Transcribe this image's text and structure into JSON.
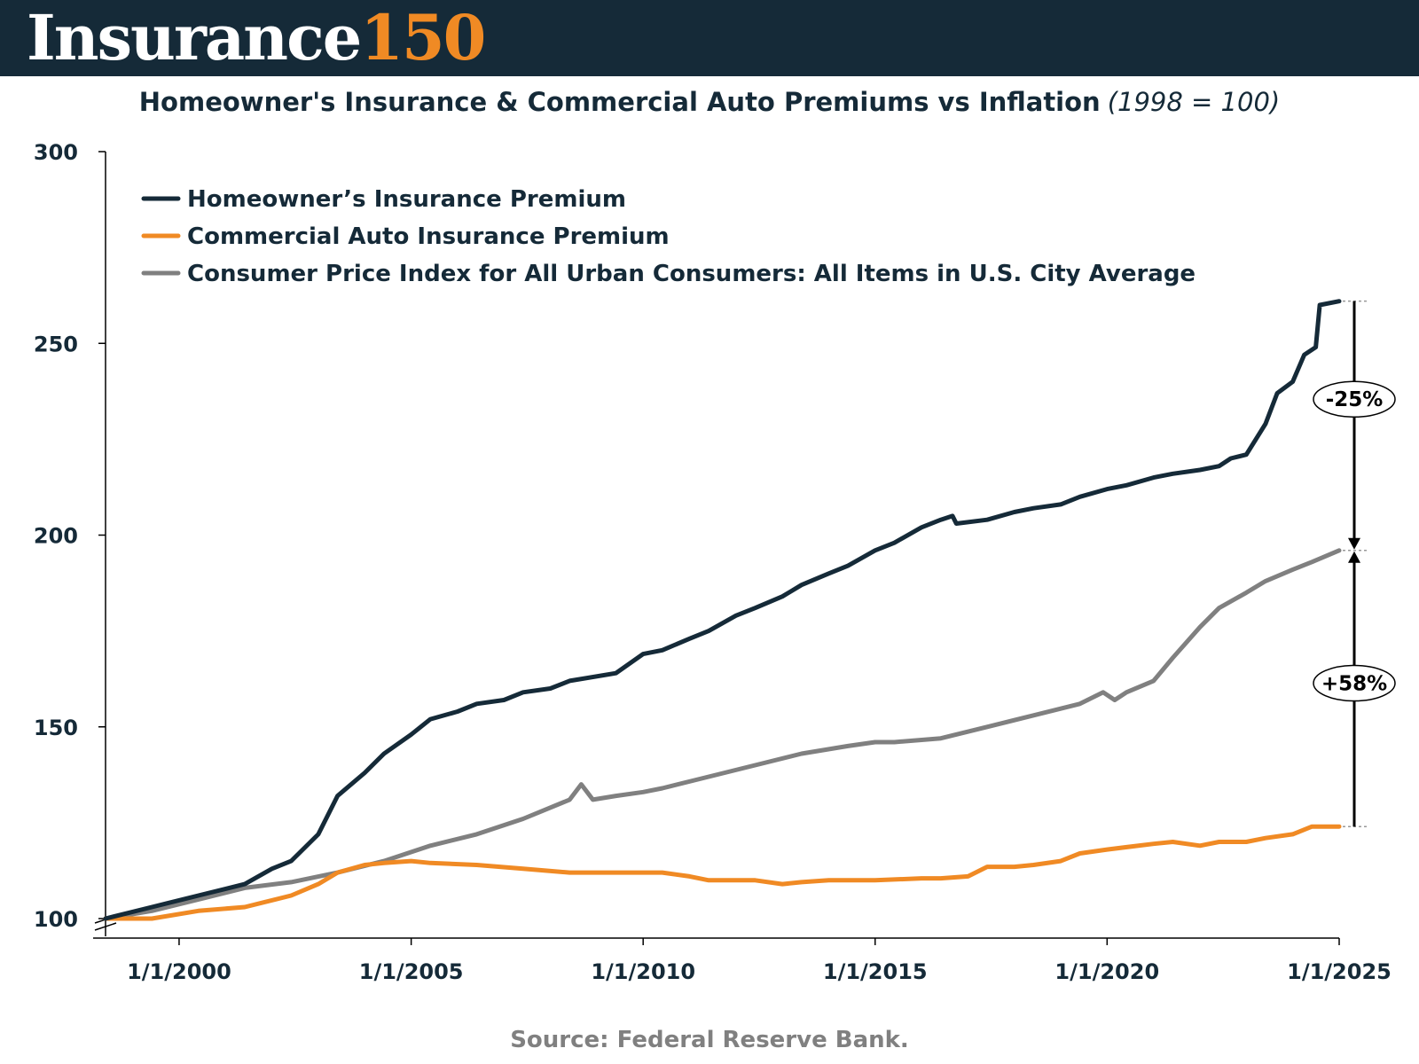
{
  "brand": {
    "logo_word": "Insurance",
    "logo_number": "150"
  },
  "source": "Source: Federal Reserve Bank.",
  "chart_data": {
    "type": "line",
    "title": "Homeowner's Insurance & Commercial Auto Premiums vs Inflation",
    "subtitle": "(1998 = 100)",
    "xlabel": "",
    "ylabel": "",
    "x_ticks": [
      "1/1/2000",
      "1/1/2005",
      "1/1/2010",
      "1/1/2015",
      "1/1/2020",
      "1/1/2025"
    ],
    "y_ticks": [
      100,
      150,
      200,
      250,
      300
    ],
    "xlim": [
      "1998-06-01",
      "2025-01-01"
    ],
    "ylim": [
      100,
      300
    ],
    "grid": false,
    "legend_position": "top-left",
    "series": [
      {
        "name": "Homeowner’s Insurance Premium",
        "color": "#152a38",
        "points": [
          [
            "1998-06-01",
            100
          ],
          [
            "1999-06-01",
            103
          ],
          [
            "2000-06-01",
            106
          ],
          [
            "2001-06-01",
            109
          ],
          [
            "2002-01-01",
            113
          ],
          [
            "2002-06-01",
            115
          ],
          [
            "2003-01-01",
            122
          ],
          [
            "2003-06-01",
            132
          ],
          [
            "2004-01-01",
            138
          ],
          [
            "2004-06-01",
            143
          ],
          [
            "2005-01-01",
            148
          ],
          [
            "2005-06-01",
            152
          ],
          [
            "2006-01-01",
            154
          ],
          [
            "2006-06-01",
            156
          ],
          [
            "2007-01-01",
            157
          ],
          [
            "2007-06-01",
            159
          ],
          [
            "2008-01-01",
            160
          ],
          [
            "2008-06-01",
            162
          ],
          [
            "2009-06-01",
            164
          ],
          [
            "2010-01-01",
            169
          ],
          [
            "2010-06-01",
            170
          ],
          [
            "2011-01-01",
            173
          ],
          [
            "2011-06-01",
            175
          ],
          [
            "2012-01-01",
            179
          ],
          [
            "2012-06-01",
            181
          ],
          [
            "2013-01-01",
            184
          ],
          [
            "2013-06-01",
            187
          ],
          [
            "2014-01-01",
            190
          ],
          [
            "2014-06-01",
            192
          ],
          [
            "2015-01-01",
            196
          ],
          [
            "2015-06-01",
            198
          ],
          [
            "2016-01-01",
            202
          ],
          [
            "2016-06-01",
            204
          ],
          [
            "2016-09-01",
            205
          ],
          [
            "2016-10-01",
            203
          ],
          [
            "2017-06-01",
            204
          ],
          [
            "2018-01-01",
            206
          ],
          [
            "2018-06-01",
            207
          ],
          [
            "2019-01-01",
            208
          ],
          [
            "2019-06-01",
            210
          ],
          [
            "2020-01-01",
            212
          ],
          [
            "2020-06-01",
            213
          ],
          [
            "2021-01-01",
            215
          ],
          [
            "2021-06-01",
            216
          ],
          [
            "2022-01-01",
            217
          ],
          [
            "2022-06-01",
            218
          ],
          [
            "2022-09-01",
            220
          ],
          [
            "2023-01-01",
            221
          ],
          [
            "2023-06-01",
            229
          ],
          [
            "2023-09-01",
            237
          ],
          [
            "2024-01-01",
            240
          ],
          [
            "2024-04-01",
            247
          ],
          [
            "2024-07-01",
            249
          ],
          [
            "2024-08-01",
            260
          ],
          [
            "2025-01-01",
            261
          ]
        ]
      },
      {
        "name": "Commercial Auto Insurance Premium",
        "color": "#f08a24",
        "points": [
          [
            "1998-06-01",
            100
          ],
          [
            "1999-06-01",
            100
          ],
          [
            "2000-06-01",
            102
          ],
          [
            "2001-06-01",
            103
          ],
          [
            "2002-06-01",
            106
          ],
          [
            "2003-01-01",
            109
          ],
          [
            "2003-06-01",
            112
          ],
          [
            "2004-01-01",
            114
          ],
          [
            "2004-06-01",
            114.5
          ],
          [
            "2005-01-01",
            115
          ],
          [
            "2005-06-01",
            114.5
          ],
          [
            "2006-06-01",
            114
          ],
          [
            "2007-06-01",
            113
          ],
          [
            "2008-06-01",
            112
          ],
          [
            "2009-06-01",
            112
          ],
          [
            "2010-06-01",
            112
          ],
          [
            "2011-01-01",
            111
          ],
          [
            "2011-06-01",
            110
          ],
          [
            "2012-06-01",
            110
          ],
          [
            "2013-01-01",
            109
          ],
          [
            "2013-06-01",
            109.5
          ],
          [
            "2014-01-01",
            110
          ],
          [
            "2015-01-01",
            110
          ],
          [
            "2016-01-01",
            110.5
          ],
          [
            "2016-06-01",
            110.5
          ],
          [
            "2017-01-01",
            111
          ],
          [
            "2017-06-01",
            113.5
          ],
          [
            "2018-01-01",
            113.5
          ],
          [
            "2018-06-01",
            114
          ],
          [
            "2019-01-01",
            115
          ],
          [
            "2019-06-01",
            117
          ],
          [
            "2020-01-01",
            118
          ],
          [
            "2021-01-01",
            119.5
          ],
          [
            "2021-06-01",
            120
          ],
          [
            "2022-01-01",
            119
          ],
          [
            "2022-06-01",
            120
          ],
          [
            "2023-01-01",
            120
          ],
          [
            "2023-06-01",
            121
          ],
          [
            "2024-01-01",
            122
          ],
          [
            "2024-06-01",
            124
          ],
          [
            "2025-01-01",
            124
          ]
        ]
      },
      {
        "name": "Consumer Price Index for All Urban Consumers: All Items in U.S. City Average",
        "color": "#808080",
        "points": [
          [
            "1998-06-01",
            100
          ],
          [
            "1999-06-01",
            102
          ],
          [
            "2000-06-01",
            105
          ],
          [
            "2001-06-01",
            108
          ],
          [
            "2002-06-01",
            109.5
          ],
          [
            "2003-06-01",
            112
          ],
          [
            "2004-06-01",
            115
          ],
          [
            "2005-06-01",
            119
          ],
          [
            "2006-06-01",
            122
          ],
          [
            "2007-06-01",
            126
          ],
          [
            "2008-06-01",
            131
          ],
          [
            "2008-09-01",
            135
          ],
          [
            "2008-12-01",
            131
          ],
          [
            "2009-06-01",
            132
          ],
          [
            "2010-01-01",
            133
          ],
          [
            "2010-06-01",
            134
          ],
          [
            "2011-06-01",
            137
          ],
          [
            "2012-06-01",
            140
          ],
          [
            "2013-06-01",
            143
          ],
          [
            "2014-06-01",
            145
          ],
          [
            "2015-01-01",
            146
          ],
          [
            "2015-06-01",
            146
          ],
          [
            "2016-06-01",
            147
          ],
          [
            "2017-06-01",
            150
          ],
          [
            "2018-06-01",
            153
          ],
          [
            "2019-06-01",
            156
          ],
          [
            "2019-12-01",
            159
          ],
          [
            "2020-03-01",
            157
          ],
          [
            "2020-06-01",
            159
          ],
          [
            "2021-01-01",
            162
          ],
          [
            "2021-06-01",
            168
          ],
          [
            "2022-01-01",
            176
          ],
          [
            "2022-06-01",
            181
          ],
          [
            "2023-01-01",
            185
          ],
          [
            "2023-06-01",
            188
          ],
          [
            "2024-01-01",
            191
          ],
          [
            "2024-06-01",
            193
          ],
          [
            "2025-01-01",
            196
          ]
        ]
      }
    ],
    "annotations": [
      {
        "label": "-25%",
        "from_value": 261,
        "to_value": 196
      },
      {
        "label": "+58%",
        "from_value": 124,
        "to_value": 196
      }
    ]
  }
}
